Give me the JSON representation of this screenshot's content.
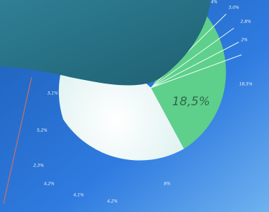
{
  "image": {
    "highlight_label": "18,5%",
    "labels": [
      "4%",
      "3,0%",
      "2,8%",
      "2%",
      "18,5%",
      "3,1%",
      "5,2%",
      "2,3%",
      "4,2%",
      "4,1%",
      "4,2%",
      "8%"
    ]
  }
}
